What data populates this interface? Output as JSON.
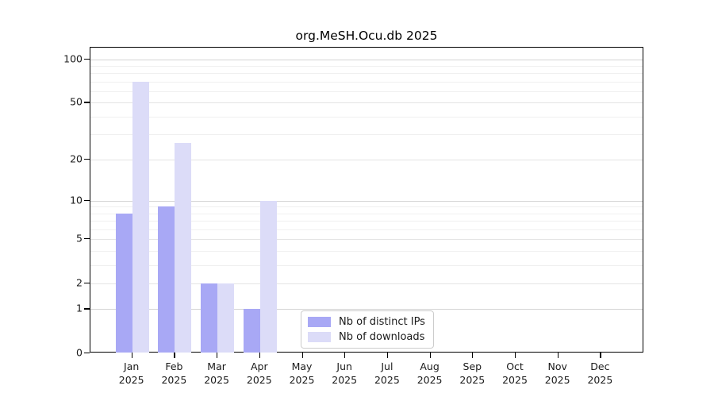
{
  "chart_data": {
    "type": "bar",
    "title": "org.MeSH.Ocu.db 2025",
    "x": {
      "months": [
        "Jan",
        "Feb",
        "Mar",
        "Apr",
        "May",
        "Jun",
        "Jul",
        "Aug",
        "Sep",
        "Oct",
        "Nov",
        "Dec"
      ],
      "year": "2025"
    },
    "series": [
      {
        "name": "Nb of distinct IPs",
        "color": "#a8a8f5",
        "values": [
          8,
          9,
          2,
          1,
          0,
          0,
          0,
          0,
          0,
          0,
          0,
          0
        ]
      },
      {
        "name": "Nb of downloads",
        "color": "#dcdcf8",
        "values": [
          70,
          26,
          2,
          10,
          0,
          0,
          0,
          0,
          0,
          0,
          0,
          0
        ]
      }
    ],
    "y_scale": "log1p",
    "ylim": [
      0,
      120
    ],
    "y_ticks": [
      0,
      1,
      2,
      5,
      10,
      20,
      50,
      100
    ],
    "y_major_gridlines": [
      1,
      10,
      100
    ],
    "y_mid_gridlines": [
      2,
      5,
      20,
      50
    ],
    "y_minor_gridlines": [
      3,
      4,
      6,
      7,
      8,
      9,
      30,
      40,
      60,
      70,
      80,
      90
    ],
    "grid": true,
    "legend": {
      "position": "lower center"
    },
    "colors": {
      "background": "#ffffff",
      "axis": "#000000",
      "text": "#1a1a1a",
      "grid_major": "#d4d4d4",
      "grid_minor": "#f0f0f0"
    }
  }
}
